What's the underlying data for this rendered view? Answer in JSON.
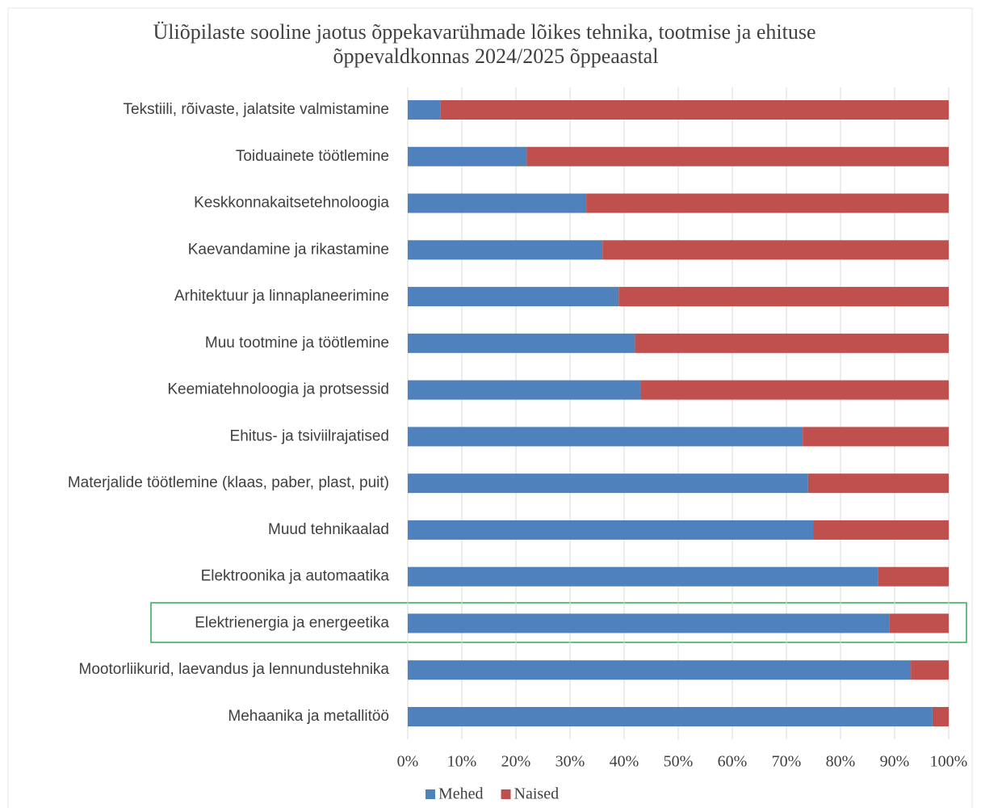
{
  "chart_data": {
    "type": "stacked_barh",
    "title": "Üliõpilaste sooline jaotus õppekavarühmade lõikes tehnika, tootmise ja ehituse",
    "subtitle": "õppevaldkonnas 2024/2025 õppeaastal",
    "categories": [
      "Tekstiili, rõivaste, jalatsite valmistamine",
      "Toiduainete töötlemine",
      "Keskkonnakaitsetehnoloogia",
      "Kaevandamine ja rikastamine",
      "Arhitektuur ja linnaplaneerimine",
      "Muu tootmine ja töötlemine",
      "Keemiatehnoloogia ja protsessid",
      "Ehitus- ja tsiviilrajatised",
      "Materjalide töötlemine (klaas, paber, plast, puit)",
      "Muud tehnikaalad",
      "Elektroonika ja automaatika",
      "Elektrienergia ja energeetika",
      "Mootorliikurid, laevandus ja lennundustehnika",
      "Mehaanika ja metallitöö"
    ],
    "series": [
      {
        "name": "Mehed",
        "color": "#4f81bd",
        "values": [
          6,
          22,
          33,
          36,
          39,
          42,
          43,
          73,
          74,
          75,
          87,
          89,
          93,
          97
        ]
      },
      {
        "name": "Naised",
        "color": "#c0504d",
        "values": [
          94,
          78,
          67,
          64,
          61,
          58,
          57,
          27,
          26,
          25,
          13,
          11,
          7,
          3
        ]
      }
    ],
    "xlim": [
      0,
      100
    ],
    "xticks": [
      {
        "value": 0,
        "label": "0%"
      },
      {
        "value": 10,
        "label": "10%"
      },
      {
        "value": 20,
        "label": "20%"
      },
      {
        "value": 30,
        "label": "30%"
      },
      {
        "value": 40,
        "label": "40%"
      },
      {
        "value": 50,
        "label": "50%"
      },
      {
        "value": 60,
        "label": "60%"
      },
      {
        "value": 70,
        "label": "70%"
      },
      {
        "value": 80,
        "label": "80%"
      },
      {
        "value": 90,
        "label": "90%"
      },
      {
        "value": 100,
        "label": "100%"
      }
    ],
    "grid": true,
    "legend": "bottom"
  }
}
